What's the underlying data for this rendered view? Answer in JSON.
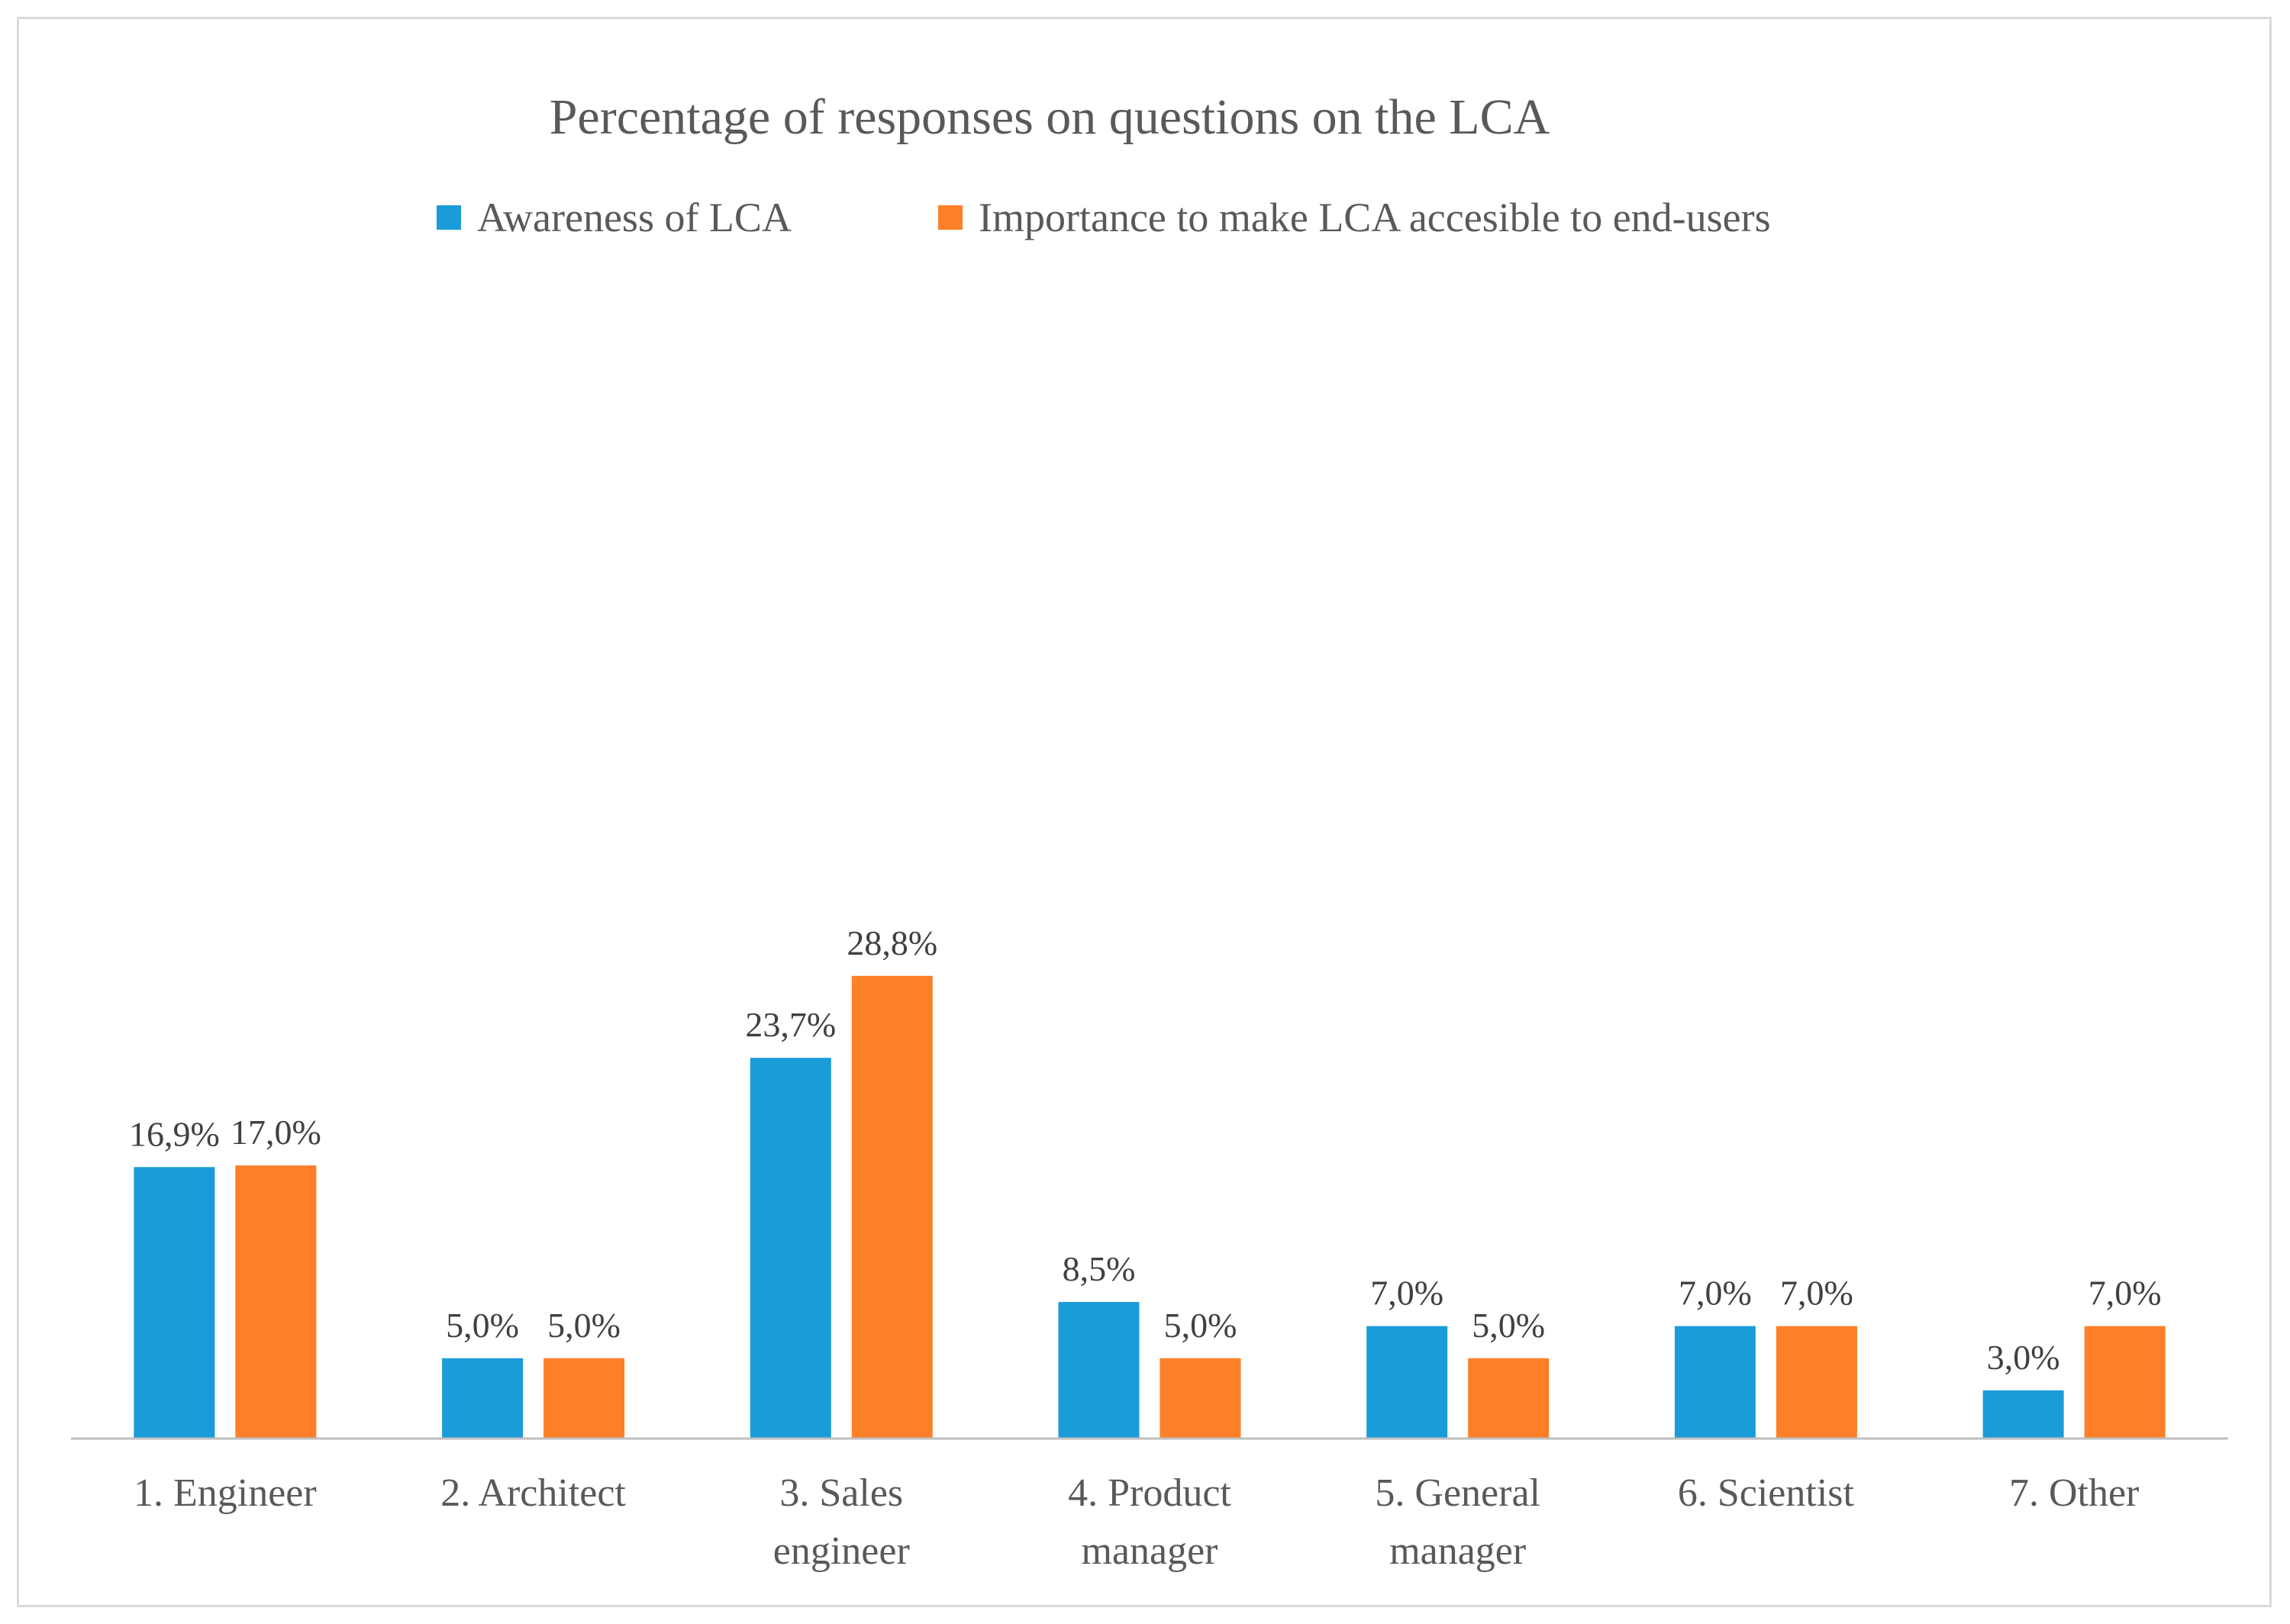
{
  "chart_data": {
    "type": "bar",
    "title": "Percentage of responses on questions on the LCA",
    "legend_position": "top",
    "grid": false,
    "xlabel": "",
    "ylabel": "",
    "ylim": [
      0,
      32
    ],
    "categories": [
      [
        "1. Engineer"
      ],
      [
        "2. Architect"
      ],
      [
        "3. Sales",
        "engineer"
      ],
      [
        "4. Product",
        "manager"
      ],
      [
        "5. General",
        "manager"
      ],
      [
        "6. Scientist"
      ],
      [
        "7. Other"
      ]
    ],
    "series": [
      {
        "name": "Awareness of LCA",
        "color": "#1a9cd8",
        "values": [
          16.9,
          5.0,
          23.7,
          8.5,
          7.0,
          7.0,
          3.0
        ],
        "labels": [
          "16,9%",
          "5,0%",
          "23,7%",
          "8,5%",
          "7,0%",
          "7,0%",
          "3,0%"
        ]
      },
      {
        "name": "Importance to make LCA accesible to end-users",
        "color": "#fd7f28",
        "values": [
          17.0,
          5.0,
          28.8,
          5.0,
          5.0,
          7.0,
          7.0
        ],
        "labels": [
          "17,0%",
          "5,0%",
          "28,8%",
          "5,0%",
          "5,0%",
          "7,0%",
          "7,0%"
        ]
      }
    ],
    "axis_color": "#bfbfbf"
  }
}
